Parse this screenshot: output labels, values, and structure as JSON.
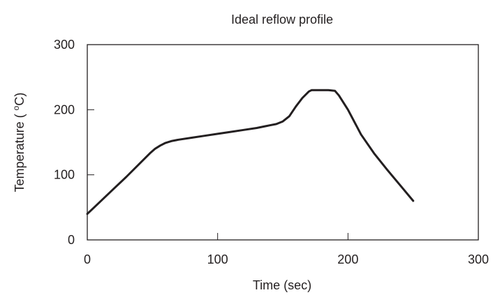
{
  "chart_data": {
    "type": "line",
    "title": "Ideal reflow profile",
    "xlabel": "Time (sec)",
    "ylabel_main": "Temperature ( ",
    "ylabel_sup": "o",
    "ylabel_unit": "C)",
    "xlim": [
      0,
      300
    ],
    "ylim": [
      0,
      300
    ],
    "x_ticks": [
      0,
      100,
      200,
      300
    ],
    "y_ticks": [
      0,
      100,
      200,
      300
    ],
    "grid": false,
    "line_color": "#231f20",
    "series": [
      {
        "x": [
          0,
          10,
          20,
          30,
          40,
          48,
          52,
          56,
          60,
          65,
          70,
          80,
          90,
          100,
          110,
          120,
          130,
          140,
          145,
          150,
          155,
          160,
          165,
          170,
          172,
          175,
          180,
          185,
          190,
          193,
          200,
          210,
          220,
          230,
          240,
          250
        ],
        "y": [
          40,
          59,
          78,
          97,
          117,
          133,
          140,
          145,
          149,
          152,
          154,
          157,
          160,
          163,
          166,
          169,
          172,
          176,
          178,
          182,
          190,
          205,
          218,
          228,
          230,
          230,
          230,
          230,
          229,
          222,
          200,
          162,
          133,
          108,
          84,
          60
        ]
      }
    ]
  }
}
